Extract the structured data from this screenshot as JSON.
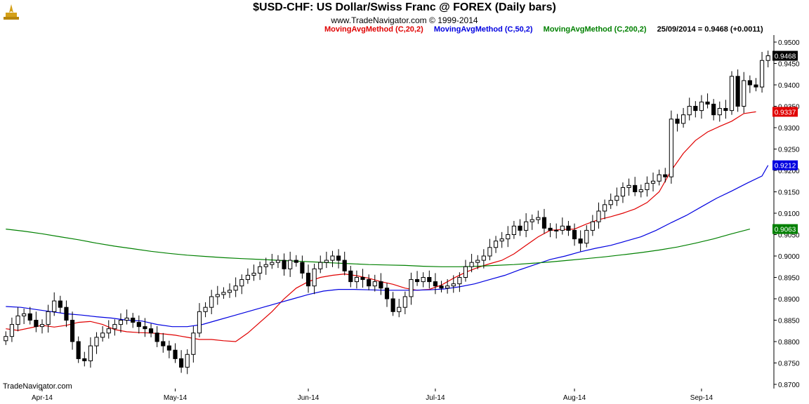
{
  "header": {
    "title": "$USD-CHF:  US Dollar/Swiss Franc @ FOREX  (Daily bars)",
    "copyright": "www.TradeNavigator.com © 1999-2014",
    "legend": [
      {
        "label": "MovingAvgMethod (C,20,2)",
        "color": "#e00000"
      },
      {
        "label": "MovingAvgMethod (C,50,2)",
        "color": "#0000e0"
      },
      {
        "label": "MovingAvgMethod (C,200,2)",
        "color": "#008000"
      },
      {
        "label": "25/09/2014 = 0.9468 (+0.0011)",
        "color": "#000000"
      }
    ]
  },
  "footer": {
    "brand": "TradeNavigator.com"
  },
  "chart_data": {
    "type": "candlestick",
    "ylim": [
      0.87,
      0.95
    ],
    "y_ticks": [
      "0.9500",
      "0.9450",
      "0.9400",
      "0.9350",
      "0.9300",
      "0.9250",
      "0.9200",
      "0.9150",
      "0.9100",
      "0.9050",
      "0.9000",
      "0.8950",
      "0.8900",
      "0.8850",
      "0.8800",
      "0.8750",
      "0.8700"
    ],
    "x_labels": [
      {
        "label": "Apr-14",
        "index": 6
      },
      {
        "label": "May-14",
        "index": 28
      },
      {
        "label": "Jun-14",
        "index": 50
      },
      {
        "label": "Jul-14",
        "index": 71
      },
      {
        "label": "Aug-14",
        "index": 94
      },
      {
        "label": "Sep-14",
        "index": 115
      }
    ],
    "closes": [
      0.8812,
      0.884,
      0.886,
      0.8865,
      0.885,
      0.8835,
      0.884,
      0.887,
      0.8895,
      0.888,
      0.885,
      0.88,
      0.876,
      0.8755,
      0.879,
      0.881,
      0.882,
      0.883,
      0.884,
      0.885,
      0.8855,
      0.8845,
      0.8835,
      0.883,
      0.882,
      0.88,
      0.879,
      0.878,
      0.876,
      0.874,
      0.877,
      0.882,
      0.887,
      0.888,
      0.8905,
      0.891,
      0.8915,
      0.892,
      0.893,
      0.8945,
      0.8955,
      0.896,
      0.8975,
      0.898,
      0.8985,
      0.899,
      0.897,
      0.899,
      0.8985,
      0.896,
      0.893,
      0.897,
      0.8985,
      0.899,
      0.9,
      0.899,
      0.8965,
      0.894,
      0.895,
      0.8945,
      0.893,
      0.894,
      0.8925,
      0.89,
      0.887,
      0.888,
      0.8905,
      0.8945,
      0.894,
      0.895,
      0.894,
      0.893,
      0.8925,
      0.893,
      0.8935,
      0.895,
      0.8975,
      0.8985,
      0.899,
      0.9,
      0.902,
      0.9035,
      0.904,
      0.905,
      0.907,
      0.906,
      0.908,
      0.9085,
      0.909,
      0.9065,
      0.906,
      0.906,
      0.907,
      0.906,
      0.904,
      0.903,
      0.906,
      0.908,
      0.9105,
      0.912,
      0.913,
      0.914,
      0.916,
      0.9165,
      0.915,
      0.9155,
      0.917,
      0.9175,
      0.919,
      0.9185,
      0.932,
      0.931,
      0.933,
      0.935,
      0.934,
      0.936,
      0.9355,
      0.933,
      0.9345,
      0.934,
      0.942,
      0.935,
      0.941,
      0.94,
      0.9395,
      0.9457,
      0.9468
    ],
    "series": [
      {
        "name": "MovingAvgMethod (C,20,2)",
        "color": "#e00000",
        "values": [
          0.883,
          0.8826,
          0.8832,
          0.8838,
          0.8834,
          0.8838,
          0.8845,
          0.8847,
          0.884,
          0.8828,
          0.8823,
          0.8821,
          0.882,
          0.8818,
          0.8815,
          0.881,
          0.8805,
          0.8805,
          0.8802,
          0.88,
          0.882,
          0.8845,
          0.887,
          0.89,
          0.8925,
          0.894,
          0.895,
          0.8955,
          0.8958,
          0.8954,
          0.8948,
          0.894,
          0.8934,
          0.8925,
          0.892,
          0.8922,
          0.8932,
          0.8948,
          0.8962,
          0.8973,
          0.8982,
          0.899,
          0.9005,
          0.9025,
          0.9045,
          0.906,
          0.9062,
          0.9063,
          0.9075,
          0.9085,
          0.9092,
          0.91,
          0.911,
          0.9125,
          0.915,
          0.92,
          0.924,
          0.927,
          0.929,
          0.9303,
          0.9315,
          0.9333,
          0.9337
        ],
        "start_index": 0,
        "step": 2
      },
      {
        "name": "MovingAvgMethod (C,50,2)",
        "color": "#0000e0",
        "values": [
          0.8882,
          0.888,
          0.8875,
          0.887,
          0.8865,
          0.8862,
          0.8858,
          0.8855,
          0.885,
          0.8848,
          0.884,
          0.8835,
          0.8835,
          0.884,
          0.885,
          0.886,
          0.887,
          0.888,
          0.889,
          0.89,
          0.891,
          0.8918,
          0.8922,
          0.8922,
          0.8921,
          0.892,
          0.892,
          0.892,
          0.8921,
          0.8923,
          0.8928,
          0.8935,
          0.8945,
          0.8955,
          0.8968,
          0.898,
          0.8992,
          0.9,
          0.901,
          0.9018,
          0.9025,
          0.9035,
          0.9045,
          0.906,
          0.9078,
          0.9095,
          0.9115,
          0.9135,
          0.9152,
          0.917,
          0.9187,
          0.9212
        ],
        "start_index": 0,
        "step": 2.5
      },
      {
        "name": "MovingAvgMethod (C,200,2)",
        "color": "#008000",
        "values": [
          0.9063,
          0.9058,
          0.9052,
          0.9045,
          0.9038,
          0.903,
          0.9023,
          0.9017,
          0.9011,
          0.9006,
          0.9002,
          0.8999,
          0.8996,
          0.8994,
          0.8992,
          0.899,
          0.8988,
          0.8986,
          0.8984,
          0.8982,
          0.898,
          0.8979,
          0.8978,
          0.8976,
          0.8975,
          0.8975,
          0.8976,
          0.8978,
          0.898,
          0.8983,
          0.8986,
          0.899,
          0.8994,
          0.8998,
          0.9003,
          0.9008,
          0.9014,
          0.9021,
          0.903,
          0.904,
          0.9052,
          0.9063
        ],
        "start_index": 0,
        "step": 3.0
      }
    ],
    "price_labels": [
      {
        "value": 0.9468,
        "text": "0.9468",
        "bg": "#000000",
        "fg": "#ffffff"
      },
      {
        "value": 0.9337,
        "text": "0.9337",
        "bg": "#e00000",
        "fg": "#ffffff"
      },
      {
        "value": 0.9212,
        "text": "0.9212",
        "bg": "#0000e0",
        "fg": "#ffffff"
      },
      {
        "value": 0.9063,
        "text": "0.9063",
        "bg": "#008000",
        "fg": "#ffffff"
      }
    ]
  }
}
